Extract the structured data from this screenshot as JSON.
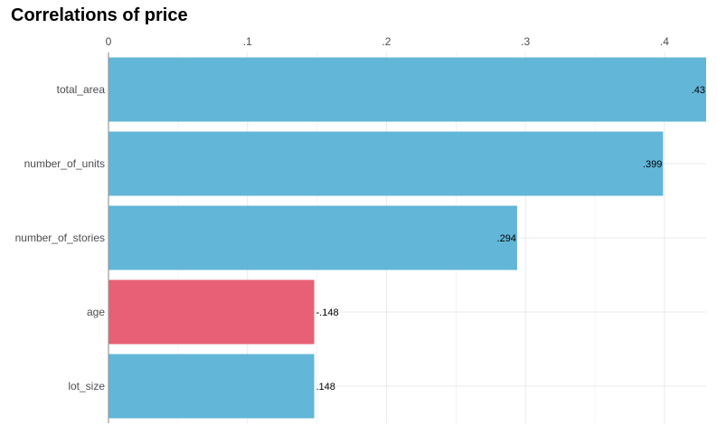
{
  "chart_data": {
    "type": "bar",
    "orientation": "horizontal",
    "title": "Correlations of price",
    "xlabel": "",
    "ylabel": "",
    "xlim": [
      0,
      0.43
    ],
    "x_ticks": [
      0,
      0.1,
      0.2,
      0.3,
      0.4
    ],
    "x_tick_labels": [
      "0",
      ".1",
      ".2",
      ".3",
      ".4"
    ],
    "x_axis_position": "top",
    "grid": true,
    "legend": "none",
    "categories": [
      "total_area",
      "number_of_units",
      "number_of_stories",
      "age",
      "lot_size"
    ],
    "values": [
      0.43,
      0.399,
      0.294,
      -0.148,
      0.148
    ],
    "bar_lengths": [
      0.43,
      0.399,
      0.294,
      0.148,
      0.148
    ],
    "data_labels": [
      ".43",
      ".399",
      ".294",
      "-.148",
      ".148"
    ],
    "colors": {
      "positive": "#62b6d7",
      "negative": "#e86076",
      "grid": "#ebebeb",
      "axis": "#999999"
    }
  }
}
